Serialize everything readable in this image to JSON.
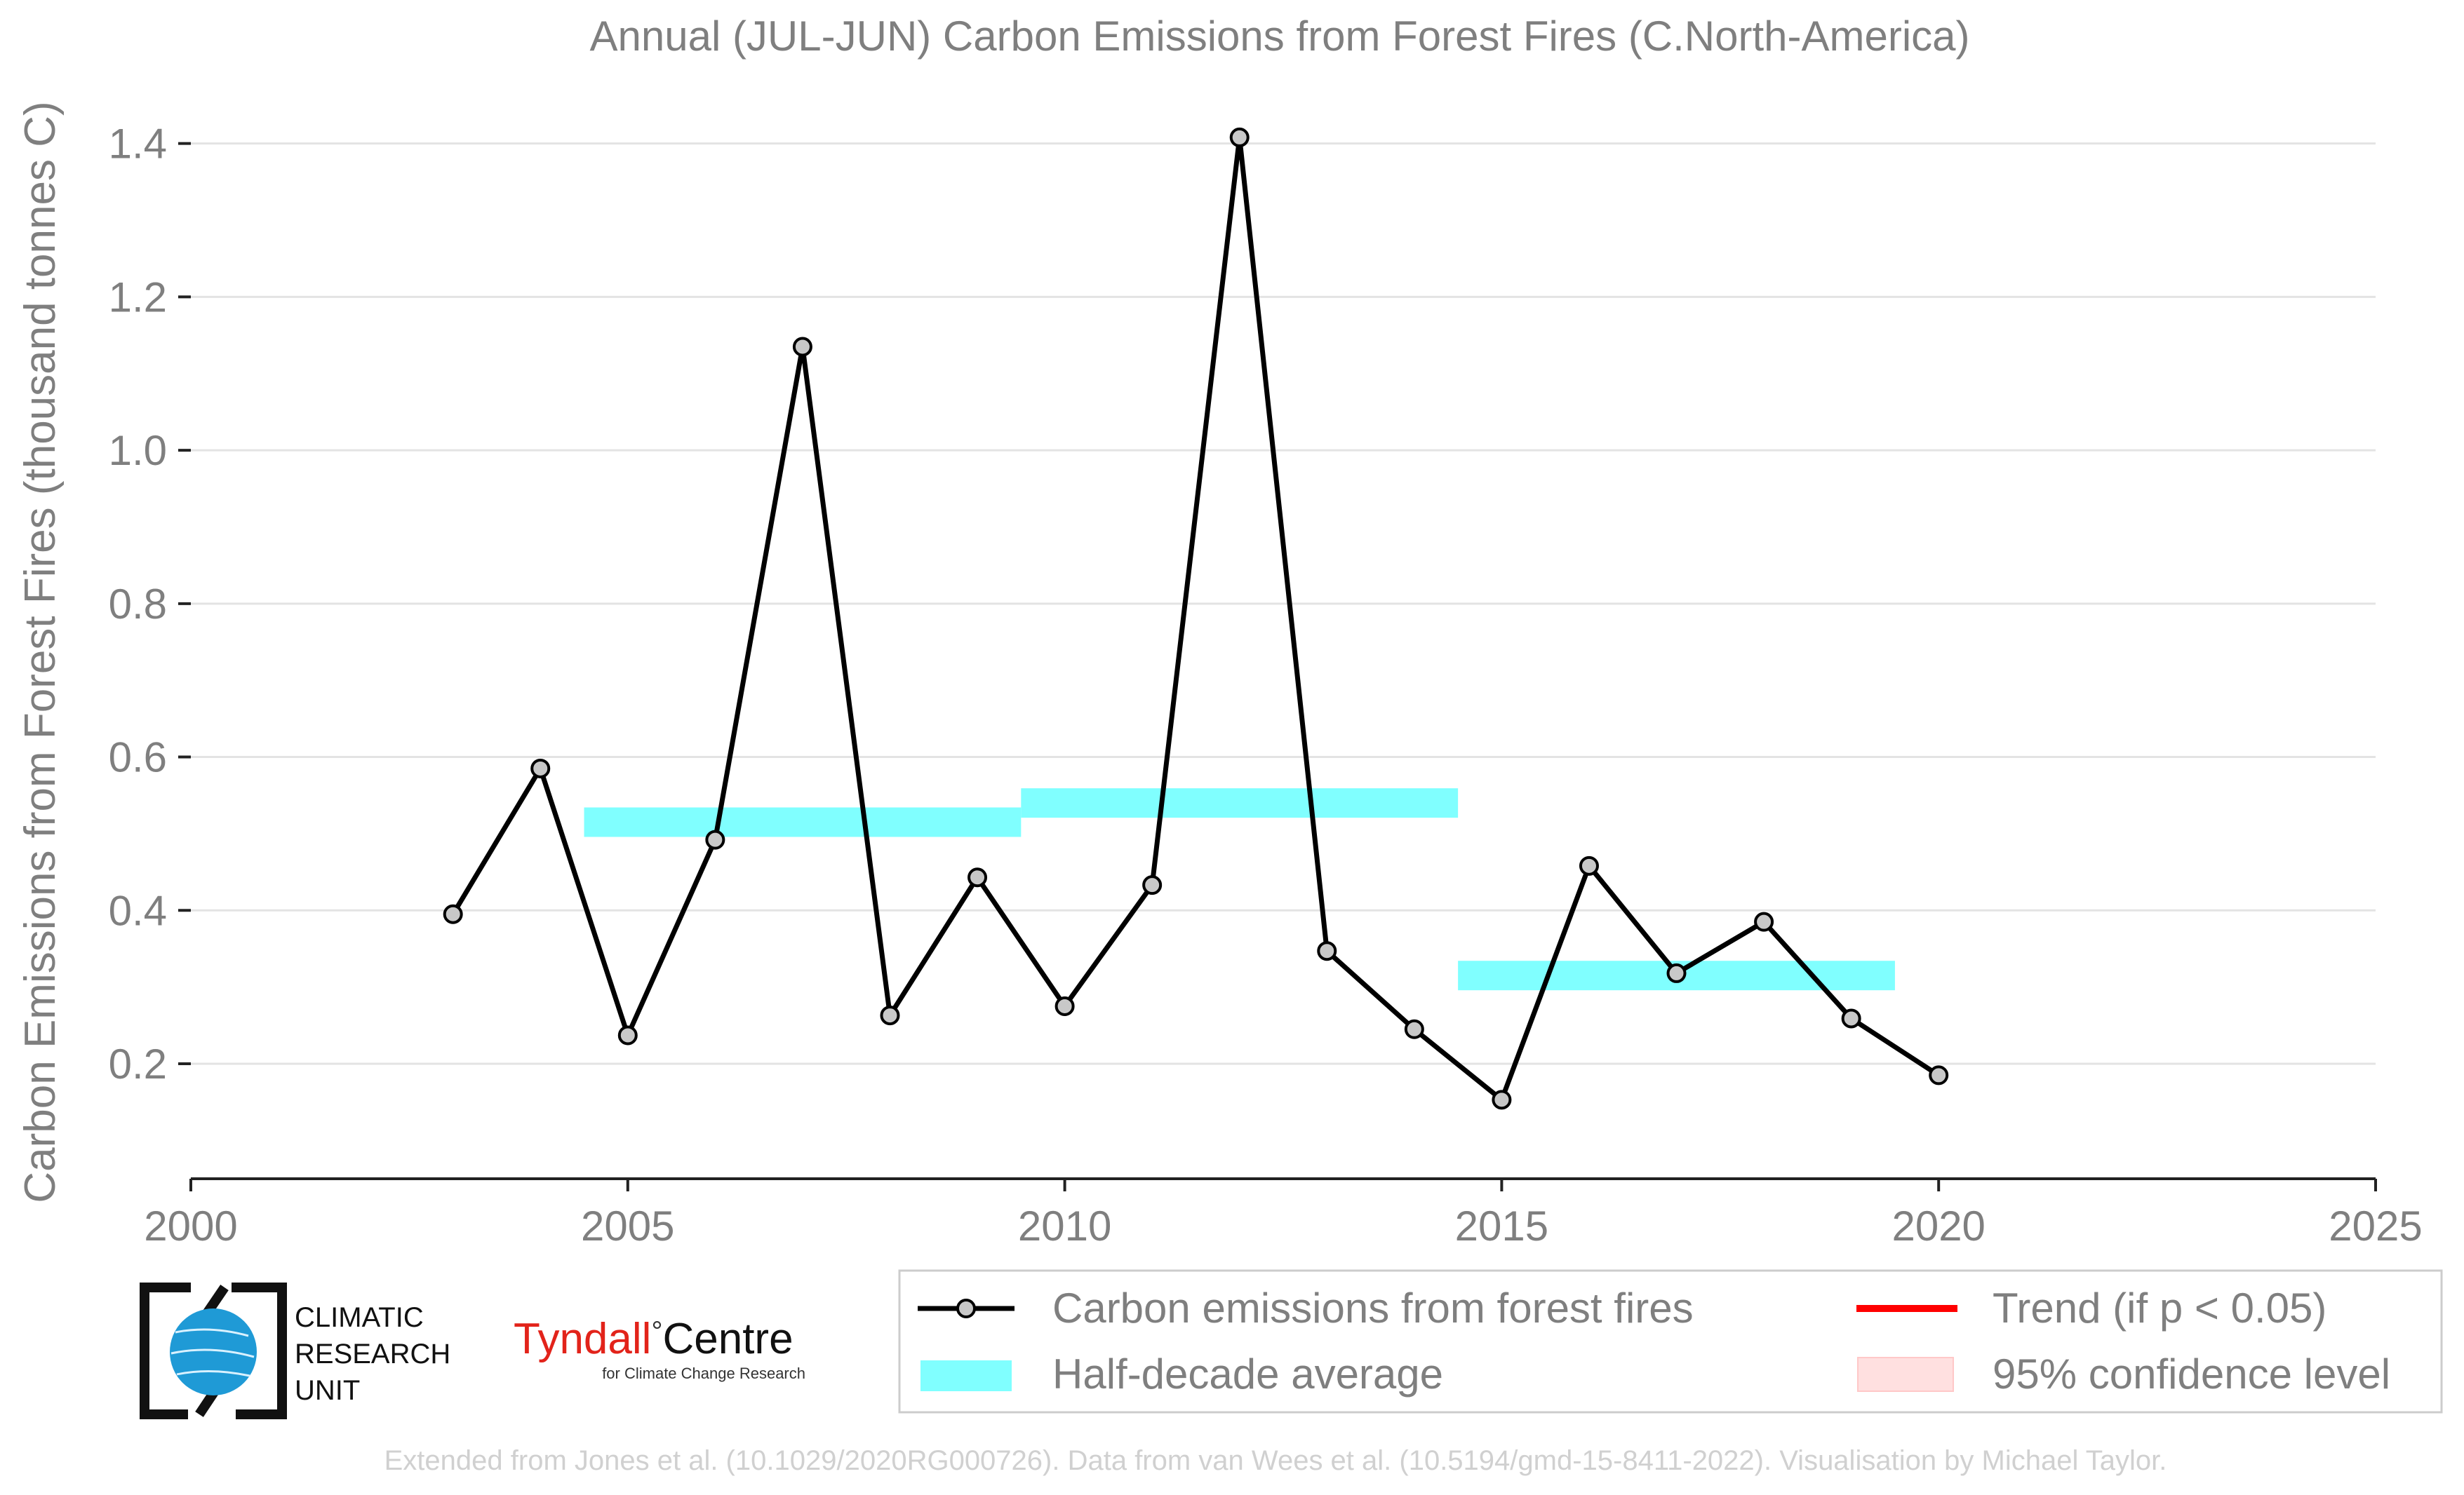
{
  "chart_data": {
    "type": "line",
    "title": "Annual (JUL-JUN) Carbon Emissions from Forest Fires (C.North-America)",
    "ylabel": "Carbon Emissions from Forest Fires (thousand tonnes C)",
    "xlabel": "",
    "xlim": [
      2000,
      2025
    ],
    "ylim": [
      0.05,
      1.45
    ],
    "x_ticks": [
      "2000",
      "2005",
      "2010",
      "2015",
      "2020",
      "2025"
    ],
    "y_ticks": [
      "0.2",
      "0.4",
      "0.6",
      "0.8",
      "1.0",
      "1.2",
      "1.4"
    ],
    "grid": "horizontal",
    "series": [
      {
        "name": "Carbon emissions from forest fires",
        "color": "#000000",
        "marker_color": "#c8c8c8",
        "x": [
          2003,
          2004,
          2005,
          2006,
          2007,
          2008,
          2009,
          2010,
          2011,
          2012,
          2013,
          2014,
          2015,
          2016,
          2017,
          2018,
          2019,
          2020
        ],
        "y": [
          0.395,
          0.585,
          0.237,
          0.492,
          1.135,
          0.263,
          0.443,
          0.275,
          0.433,
          1.408,
          0.347,
          0.245,
          0.153,
          0.458,
          0.318,
          0.385,
          0.259,
          0.185
        ]
      }
    ],
    "half_decade_average": {
      "name": "Half-decade average",
      "color": "#80ffff",
      "segments": [
        {
          "x_start": 2004.5,
          "x_end": 2009.5,
          "value": 0.515
        },
        {
          "x_start": 2009.5,
          "x_end": 2014.5,
          "value": 0.54
        },
        {
          "x_start": 2014.5,
          "x_end": 2019.5,
          "value": 0.315
        }
      ]
    },
    "legend": {
      "placement": "bottom-right",
      "entries": [
        {
          "label": "Carbon emissions from forest fires",
          "kind": "line-marker",
          "color": "#000000"
        },
        {
          "label": "Trend (if p < 0.05)",
          "kind": "line",
          "color": "#ff0000"
        },
        {
          "label": "Half-decade average",
          "kind": "band",
          "color": "#80ffff"
        },
        {
          "label": "95% confidence level",
          "kind": "patch",
          "color": "#ffe0e0"
        }
      ]
    }
  },
  "logos": {
    "cru": {
      "line1": "CLIMATIC",
      "line2": "RESEARCH",
      "line3": "UNIT",
      "accent": "#1f9ad6"
    },
    "tyndall": {
      "name": "Tyndall",
      "degree": "°",
      "suffix": "Centre",
      "tagline": "for Climate Change Research",
      "accent": "#e2231a"
    }
  },
  "footer": {
    "credit": "Extended from Jones et al. (10.1029/2020RG000726). Data from van Wees et al. (10.5194/gmd-15-8411-2022). Visualisation by Michael Taylor."
  }
}
